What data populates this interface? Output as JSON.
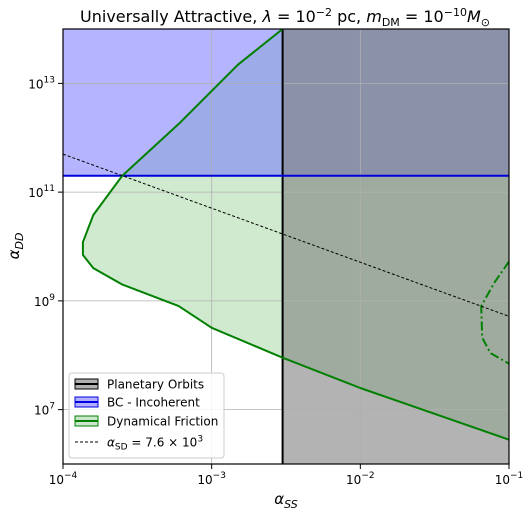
{
  "chart_data": {
    "type": "area",
    "title_parts": {
      "prefix": "Universally Attractive, ",
      "lambda_symbol": "λ",
      "eq1": " = 10",
      "exp1": "−2",
      "unit1": " pc, ",
      "m_symbol": "m",
      "m_sub": "DM",
      "eq2": " = 10",
      "exp2": "−10",
      "msun_symbol": "M",
      "msun_sub": "⊙"
    },
    "xlabel": {
      "symbol": "α",
      "sub": "SS"
    },
    "ylabel": {
      "symbol": "α",
      "sub": "DD"
    },
    "xscale": "log",
    "yscale": "log",
    "xlim": [
      0.0001,
      0.1
    ],
    "ylim": [
      1000000,
      100000000000000
    ],
    "grid": true,
    "x_ticks": [
      {
        "value": 0.0001,
        "base": "10",
        "exp": "−4"
      },
      {
        "value": 0.001,
        "base": "10",
        "exp": "−3"
      },
      {
        "value": 0.01,
        "base": "10",
        "exp": "−2"
      },
      {
        "value": 0.1,
        "base": "10",
        "exp": "−1"
      }
    ],
    "y_ticks": [
      {
        "value": 10000000,
        "base": "10",
        "exp": "7"
      },
      {
        "value": 1000000000,
        "base": "10",
        "exp": "9"
      },
      {
        "value": 100000000000,
        "base": "10",
        "exp": "11"
      },
      {
        "value": 10000000000000,
        "base": "10",
        "exp": "13"
      }
    ],
    "series": [
      {
        "name": "Planetary Orbits",
        "kind": "region",
        "x_min": 0.003,
        "color": "#000000",
        "fill": "#808080"
      },
      {
        "name": "BC - Incoherent",
        "kind": "region",
        "y_min": 200000000000,
        "color": "#0000dd",
        "fill": "#7777ff"
      },
      {
        "name": "Dynamical Friction",
        "kind": "curve",
        "color": "#008000",
        "fill": "#a8d8a8",
        "points": [
          [
            0.003,
            100000000000000
          ],
          [
            0.0015,
            22000000000000
          ],
          [
            0.0006,
            1800000000000
          ],
          [
            0.00025,
            200000000000
          ],
          [
            0.00016,
            38000000000
          ],
          [
            0.000136,
            12000000000
          ],
          [
            0.000136,
            7000000000
          ],
          [
            0.00016,
            4000000000
          ],
          [
            0.00025,
            2000000000
          ],
          [
            0.0006,
            800000000
          ],
          [
            0.001,
            320000000
          ],
          [
            0.003,
            90000000
          ],
          [
            0.01,
            25000000
          ],
          [
            0.1,
            2800000
          ]
        ],
        "secondary_dashdot": [
          [
            0.1,
            5300000000
          ],
          [
            0.08,
            2200000000
          ],
          [
            0.065,
            800000000
          ],
          [
            0.066,
            210000000
          ],
          [
            0.075,
            110000000
          ],
          [
            0.1,
            70000000
          ]
        ]
      },
      {
        "name": "α_SD = 7.6 × 10³",
        "legend_label": {
          "symbol": "α",
          "sub": "SD",
          "rest": " = 7.6 × 10",
          "exp": "3"
        },
        "kind": "line",
        "color": "#000000",
        "dashed": true,
        "points": [
          [
            0.0001,
            500000000000
          ],
          [
            0.1,
            520000000
          ]
        ]
      }
    ],
    "legend": {
      "position": "lower-left",
      "entries": [
        "Planetary Orbits",
        "BC - Incoherent",
        "Dynamical Friction",
        "α_SD = 7.6 × 10³"
      ]
    },
    "colors": {
      "grid": "#b0b0b0",
      "overlap_blue_gray": "#6578a0",
      "overlap_green_gray": "#8aa88a",
      "overlap_green_blue": "#8aa8cc"
    }
  }
}
